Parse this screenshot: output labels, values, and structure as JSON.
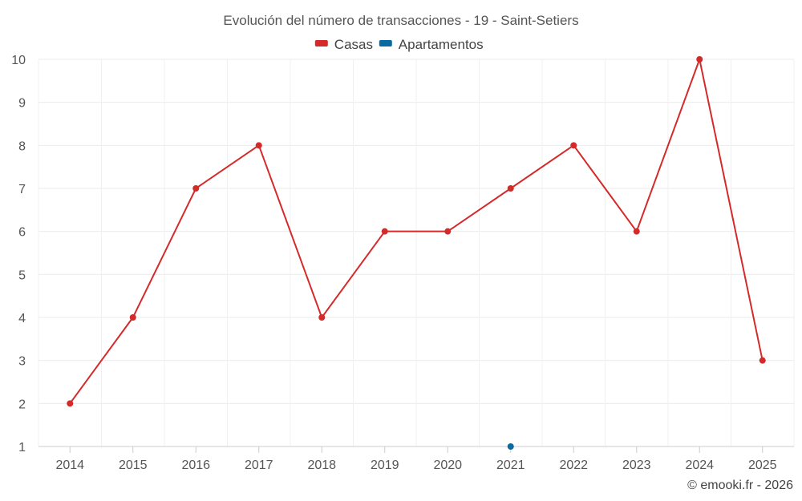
{
  "chart_data": {
    "type": "line",
    "title": "Evolución del número de transacciones - 19 - Saint-Setiers",
    "categories": [
      "2014",
      "2015",
      "2016",
      "2017",
      "2018",
      "2019",
      "2020",
      "2021",
      "2022",
      "2023",
      "2024",
      "2025"
    ],
    "series": [
      {
        "name": "Casas",
        "color": "#d42a2a",
        "values": [
          2,
          4,
          7,
          8,
          4,
          6,
          6,
          7,
          8,
          6,
          10,
          3
        ]
      },
      {
        "name": "Apartamentos",
        "color": "#0a6aa1",
        "values": [
          null,
          null,
          null,
          null,
          null,
          null,
          null,
          1,
          null,
          null,
          null,
          null
        ]
      }
    ],
    "yticks": [
      "1",
      "2",
      "3",
      "4",
      "5",
      "6",
      "7",
      "8",
      "9",
      "10"
    ],
    "ylim": [
      1,
      10
    ],
    "grid": true,
    "legend": "top-center"
  },
  "credit": "© emooki.fr - 2026"
}
